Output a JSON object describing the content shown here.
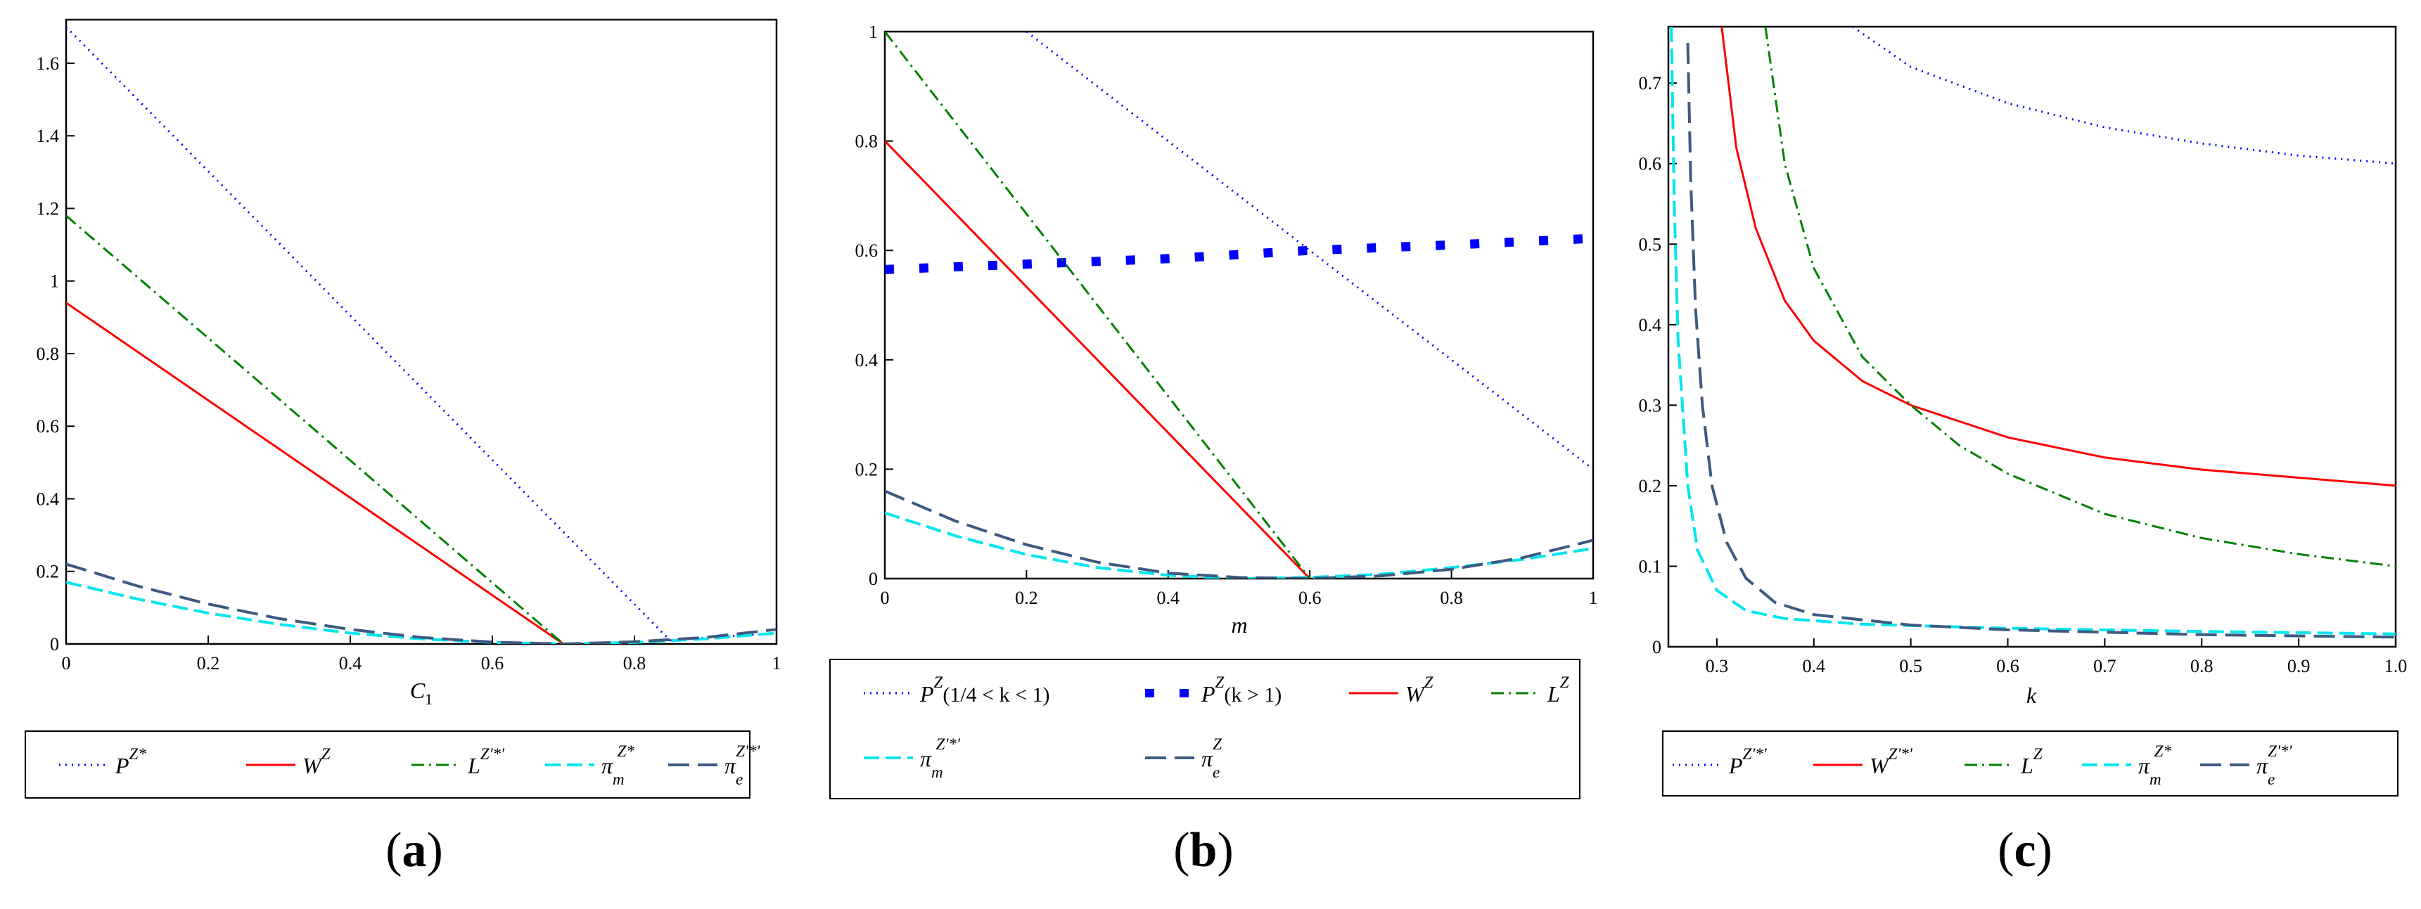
{
  "chart_data": [
    {
      "type": "line",
      "panel_label": "(a)",
      "panel_letter": "a",
      "xlabel": "C",
      "xlabel_sub": "1",
      "ylabel": "",
      "xlim": [
        0,
        1
      ],
      "ylim": [
        0,
        1.72
      ],
      "x_ticks": [
        0,
        0.2,
        0.4,
        0.6,
        0.8,
        1
      ],
      "x_tick_labels": [
        "0",
        "0.2",
        "0.4",
        "0.6",
        "0.8",
        "1"
      ],
      "y_ticks": [
        0,
        0.2,
        0.4,
        0.6,
        0.8,
        1,
        1.2,
        1.4,
        1.6
      ],
      "y_tick_labels": [
        "0",
        "0.2",
        "0.4",
        "0.6",
        "0.8",
        "1",
        "1.2",
        "1.4",
        "1.6"
      ],
      "series": [
        {
          "id": "P",
          "name": "P",
          "sup": "Z*",
          "sub": "",
          "color": "#0000ff",
          "style": "dotted",
          "x": [
            0,
            0.85,
            1
          ],
          "y": [
            1.7,
            0.01,
            0.03
          ]
        },
        {
          "id": "W",
          "name": "W",
          "sup": "Z",
          "sub": "",
          "color": "#ff0000",
          "style": "solid",
          "x": [
            0,
            0.7
          ],
          "y": [
            0.94,
            0.0
          ]
        },
        {
          "id": "L",
          "name": "L",
          "sup": "Z'*'",
          "sub": "",
          "color": "#008000",
          "style": "dashdot",
          "x": [
            0,
            0.7
          ],
          "y": [
            1.18,
            0.0
          ]
        },
        {
          "id": "pim",
          "name": "π",
          "sup": "Z*",
          "sub": "m",
          "color": "#00e5ee",
          "style": "dashed",
          "x": [
            0,
            0.1,
            0.2,
            0.3,
            0.4,
            0.5,
            0.6,
            0.7,
            0.8,
            0.9,
            1.0
          ],
          "y": [
            0.17,
            0.124,
            0.085,
            0.054,
            0.03,
            0.014,
            0.004,
            0.0,
            0.004,
            0.014,
            0.03
          ]
        },
        {
          "id": "pie",
          "name": "π",
          "sup": "Z'*'",
          "sub": "e",
          "color": "#3d5a80",
          "style": "longdash",
          "x": [
            0,
            0.1,
            0.2,
            0.3,
            0.4,
            0.5,
            0.6,
            0.7,
            0.8,
            0.9,
            1.0
          ],
          "y": [
            0.22,
            0.16,
            0.11,
            0.07,
            0.04,
            0.018,
            0.005,
            0.0,
            0.006,
            0.018,
            0.04
          ]
        }
      ]
    },
    {
      "type": "line",
      "panel_label": "(b)",
      "panel_letter": "b",
      "xlabel": "m",
      "xlabel_sub": "",
      "ylabel": "",
      "xlim": [
        0,
        1
      ],
      "ylim": [
        0,
        1
      ],
      "x_ticks": [
        0,
        0.2,
        0.4,
        0.6,
        0.8,
        1
      ],
      "x_tick_labels": [
        "0",
        "0.2",
        "0.4",
        "0.6",
        "0.8",
        "1"
      ],
      "y_ticks": [
        0,
        0.2,
        0.4,
        0.6,
        0.8,
        1
      ],
      "y_tick_labels": [
        "0",
        "0.2",
        "0.4",
        "0.6",
        "0.8",
        "1"
      ],
      "series": [
        {
          "id": "P1",
          "name": "P",
          "sup": "Z",
          "sub": "",
          "suffix": "(1/4 < k < 1)",
          "color": "#0000ff",
          "style": "dotted",
          "x": [
            0.2,
            1.0
          ],
          "y": [
            1.0,
            0.2
          ]
        },
        {
          "id": "P2",
          "name": "P",
          "sup": "Z",
          "sub": "",
          "suffix": "(k > 1)",
          "color": "#0000ff",
          "style": "bigdot",
          "x": [
            0,
            0.2,
            0.4,
            0.6,
            0.8,
            1.0
          ],
          "y": [
            0.565,
            0.575,
            0.585,
            0.6,
            0.61,
            0.622
          ]
        },
        {
          "id": "W",
          "name": "W",
          "sup": "Z",
          "sub": "",
          "color": "#ff0000",
          "style": "solid",
          "x": [
            0,
            0.6
          ],
          "y": [
            0.8,
            0.0
          ]
        },
        {
          "id": "L",
          "name": "L",
          "sup": "Z",
          "sub": "",
          "color": "#008000",
          "style": "dashdot",
          "x": [
            0,
            0.6
          ],
          "y": [
            1.0,
            0.0
          ]
        },
        {
          "id": "pim",
          "name": "π",
          "sup": "Z'*'",
          "sub": "m",
          "color": "#00e5ee",
          "style": "dashed",
          "x": [
            0,
            0.1,
            0.2,
            0.3,
            0.4,
            0.5,
            0.6,
            0.7,
            0.8,
            0.9,
            1.0
          ],
          "y": [
            0.12,
            0.078,
            0.044,
            0.02,
            0.006,
            0.0,
            0.002,
            0.008,
            0.02,
            0.035,
            0.055
          ]
        },
        {
          "id": "pie",
          "name": "π",
          "sup": "Z",
          "sub": "e",
          "color": "#3d5a80",
          "style": "longdash",
          "x": [
            0,
            0.1,
            0.2,
            0.3,
            0.4,
            0.5,
            0.6,
            0.7,
            0.8,
            0.9,
            1.0
          ],
          "y": [
            0.16,
            0.105,
            0.062,
            0.03,
            0.01,
            0.002,
            0.0,
            0.005,
            0.017,
            0.038,
            0.07
          ]
        }
      ]
    },
    {
      "type": "line",
      "panel_label": "(c)",
      "panel_letter": "c",
      "xlabel": "k",
      "xlabel_sub": "",
      "ylabel": "",
      "xlim": [
        0.25,
        1
      ],
      "ylim": [
        0,
        0.77
      ],
      "x_ticks": [
        0.3,
        0.4,
        0.5,
        0.6,
        0.7,
        0.8,
        0.9,
        1.0
      ],
      "x_tick_labels": [
        "0.3",
        "0.4",
        "0.5",
        "0.6",
        "0.7",
        "0.8",
        "0.9",
        "1.0"
      ],
      "y_ticks": [
        0,
        0.1,
        0.2,
        0.3,
        0.4,
        0.5,
        0.6,
        0.7
      ],
      "y_tick_labels": [
        "0",
        "0.1",
        "0.2",
        "0.3",
        "0.4",
        "0.5",
        "0.6",
        "0.7"
      ],
      "series": [
        {
          "id": "P",
          "name": "P",
          "sup": "Z'*'",
          "sub": "",
          "color": "#0000ff",
          "style": "dotted",
          "x": [
            0.44,
            0.5,
            0.6,
            0.7,
            0.8,
            0.9,
            1.0
          ],
          "y": [
            0.77,
            0.72,
            0.675,
            0.645,
            0.625,
            0.61,
            0.6
          ]
        },
        {
          "id": "W",
          "name": "W",
          "sup": "Z'*'",
          "sub": "",
          "color": "#ff0000",
          "style": "solid",
          "x": [
            0.305,
            0.32,
            0.34,
            0.37,
            0.4,
            0.45,
            0.5,
            0.6,
            0.7,
            0.8,
            0.9,
            1.0
          ],
          "y": [
            0.77,
            0.62,
            0.52,
            0.43,
            0.38,
            0.33,
            0.3,
            0.26,
            0.235,
            0.22,
            0.21,
            0.2
          ]
        },
        {
          "id": "L",
          "name": "L",
          "sup": "Z",
          "sub": "",
          "color": "#008000",
          "style": "dashdot",
          "x": [
            0.35,
            0.37,
            0.4,
            0.45,
            0.5,
            0.55,
            0.6,
            0.7,
            0.8,
            0.9,
            1.0
          ],
          "y": [
            0.77,
            0.6,
            0.47,
            0.36,
            0.3,
            0.25,
            0.215,
            0.165,
            0.135,
            0.115,
            0.1
          ]
        },
        {
          "id": "pim",
          "name": "π",
          "sup": "Z*",
          "sub": "m",
          "color": "#00e5ee",
          "style": "dashed",
          "x": [
            0.253,
            0.256,
            0.26,
            0.27,
            0.28,
            0.3,
            0.33,
            0.37,
            0.45,
            0.6,
            0.8,
            1.0
          ],
          "y": [
            0.77,
            0.55,
            0.38,
            0.2,
            0.12,
            0.07,
            0.045,
            0.035,
            0.028,
            0.023,
            0.019,
            0.016
          ]
        },
        {
          "id": "pie",
          "name": "π",
          "sup": "Z'*'",
          "sub": "e",
          "color": "#3d5a80",
          "style": "longdash",
          "x": [
            0.27,
            0.273,
            0.278,
            0.285,
            0.295,
            0.31,
            0.33,
            0.36,
            0.4,
            0.5,
            0.6,
            0.8,
            1.0
          ],
          "y": [
            0.75,
            0.58,
            0.42,
            0.3,
            0.2,
            0.13,
            0.085,
            0.055,
            0.04,
            0.027,
            0.021,
            0.015,
            0.012
          ]
        }
      ]
    }
  ]
}
